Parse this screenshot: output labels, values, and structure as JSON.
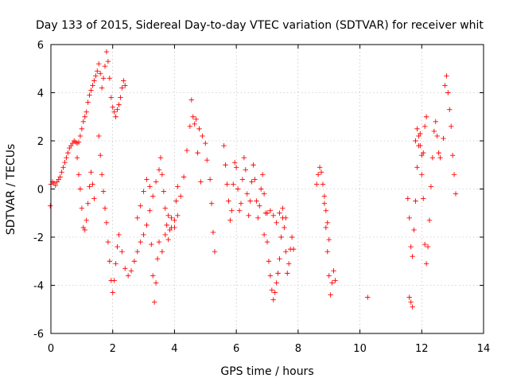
{
  "chart_data": {
    "type": "scatter",
    "title": "Day 133 of 2015, Sidereal Day-to-day VTEC variation (SDTVAR) for receiver whit",
    "xlabel": "GPS time / hours",
    "ylabel": "SDTVAR / TECUs",
    "xlim": [
      0,
      14
    ],
    "ylim": [
      -6,
      6
    ],
    "xticks": [
      0,
      2,
      4,
      6,
      8,
      10,
      12,
      14
    ],
    "yticks": [
      -6,
      -4,
      -2,
      0,
      2,
      4,
      6
    ],
    "xtick_labels": [
      "0",
      "2",
      "4",
      "6",
      "8",
      "10",
      "12",
      "14"
    ],
    "ytick_labels": [
      "-6",
      "-4",
      "-2",
      "0",
      "2",
      "4",
      "6"
    ],
    "grid": true,
    "marker": "+",
    "color": "#ff0000",
    "series": [
      {
        "name": "SDTVAR",
        "points": [
          [
            -0.02,
            -0.7
          ],
          [
            0.0,
            0.2
          ],
          [
            0.05,
            0.3
          ],
          [
            0.1,
            0.25
          ],
          [
            0.15,
            0.15
          ],
          [
            0.2,
            0.3
          ],
          [
            0.25,
            0.4
          ],
          [
            0.3,
            0.5
          ],
          [
            0.35,
            0.7
          ],
          [
            0.4,
            0.9
          ],
          [
            0.45,
            1.1
          ],
          [
            0.5,
            1.3
          ],
          [
            0.55,
            1.5
          ],
          [
            0.6,
            1.7
          ],
          [
            0.65,
            1.8
          ],
          [
            0.7,
            1.9
          ],
          [
            0.75,
            2.0
          ],
          [
            0.8,
            1.95
          ],
          [
            0.85,
            1.9
          ],
          [
            0.9,
            1.95
          ],
          [
            0.95,
            2.2
          ],
          [
            1.0,
            2.5
          ],
          [
            1.05,
            2.8
          ],
          [
            1.1,
            3.0
          ],
          [
            1.15,
            3.2
          ],
          [
            1.2,
            3.6
          ],
          [
            1.25,
            3.9
          ],
          [
            1.3,
            4.1
          ],
          [
            1.35,
            4.3
          ],
          [
            1.4,
            4.5
          ],
          [
            1.45,
            4.7
          ],
          [
            1.5,
            4.9
          ],
          [
            1.55,
            5.2
          ],
          [
            1.6,
            4.8
          ],
          [
            1.65,
            4.2
          ],
          [
            1.7,
            4.6
          ],
          [
            1.75,
            5.1
          ],
          [
            1.8,
            5.7
          ],
          [
            1.85,
            5.3
          ],
          [
            1.9,
            4.6
          ],
          [
            1.95,
            3.8
          ],
          [
            2.0,
            3.4
          ],
          [
            2.05,
            3.2
          ],
          [
            2.1,
            3.0
          ],
          [
            2.15,
            3.3
          ],
          [
            2.2,
            3.5
          ],
          [
            2.25,
            3.8
          ],
          [
            2.3,
            4.2
          ],
          [
            2.35,
            4.5
          ],
          [
            2.4,
            4.3
          ],
          [
            0.85,
            1.3
          ],
          [
            0.9,
            0.6
          ],
          [
            0.95,
            0.0
          ],
          [
            1.0,
            -0.8
          ],
          [
            1.05,
            -1.6
          ],
          [
            1.1,
            -1.7
          ],
          [
            1.15,
            -1.3
          ],
          [
            1.2,
            -0.6
          ],
          [
            1.25,
            0.1
          ],
          [
            1.3,
            0.7
          ],
          [
            1.35,
            0.2
          ],
          [
            1.4,
            -0.4
          ],
          [
            1.55,
            2.2
          ],
          [
            1.6,
            1.4
          ],
          [
            1.65,
            0.6
          ],
          [
            1.7,
            -0.1
          ],
          [
            1.75,
            -0.8
          ],
          [
            1.8,
            -1.4
          ],
          [
            1.85,
            -2.2
          ],
          [
            1.9,
            -3.0
          ],
          [
            1.95,
            -3.8
          ],
          [
            2.0,
            -4.3
          ],
          [
            2.05,
            -3.8
          ],
          [
            2.1,
            -3.1
          ],
          [
            2.15,
            -2.4
          ],
          [
            2.2,
            -1.9
          ],
          [
            2.3,
            -2.6
          ],
          [
            2.4,
            -3.3
          ],
          [
            2.5,
            -3.6
          ],
          [
            2.6,
            -3.4
          ],
          [
            2.7,
            -3.0
          ],
          [
            2.8,
            -2.6
          ],
          [
            2.9,
            -2.2
          ],
          [
            3.0,
            -1.9
          ],
          [
            3.1,
            -1.5
          ],
          [
            3.2,
            -0.9
          ],
          [
            3.3,
            -0.3
          ],
          [
            3.4,
            0.3
          ],
          [
            3.5,
            0.8
          ],
          [
            3.55,
            1.3
          ],
          [
            3.6,
            0.6
          ],
          [
            3.65,
            -0.1
          ],
          [
            3.7,
            -0.8
          ],
          [
            3.75,
            -1.5
          ],
          [
            3.8,
            -2.1
          ],
          [
            3.85,
            -1.7
          ],
          [
            3.9,
            -1.2
          ],
          [
            4.0,
            -1.6
          ],
          [
            4.1,
            -1.1
          ],
          [
            4.2,
            -0.3
          ],
          [
            4.3,
            0.5
          ],
          [
            4.4,
            1.6
          ],
          [
            4.5,
            2.6
          ],
          [
            4.6,
            3.0
          ],
          [
            4.7,
            2.9
          ],
          [
            4.8,
            2.5
          ],
          [
            4.9,
            2.2
          ],
          [
            5.0,
            1.9
          ],
          [
            2.8,
            -1.2
          ],
          [
            2.9,
            -0.7
          ],
          [
            3.0,
            -0.1
          ],
          [
            3.1,
            0.4
          ],
          [
            3.2,
            0.1
          ],
          [
            3.25,
            -2.3
          ],
          [
            3.3,
            -3.6
          ],
          [
            3.35,
            -4.7
          ],
          [
            3.4,
            -3.9
          ],
          [
            3.45,
            -2.9
          ],
          [
            3.5,
            -2.2
          ],
          [
            3.6,
            -2.6
          ],
          [
            3.7,
            -1.9
          ],
          [
            3.8,
            -1.1
          ],
          [
            3.9,
            -1.6
          ],
          [
            4.0,
            -1.3
          ],
          [
            4.05,
            -0.5
          ],
          [
            4.1,
            0.1
          ],
          [
            4.55,
            3.7
          ],
          [
            4.65,
            2.7
          ],
          [
            4.75,
            1.5
          ],
          [
            4.85,
            0.3
          ],
          [
            5.05,
            1.2
          ],
          [
            5.15,
            0.4
          ],
          [
            5.2,
            -0.6
          ],
          [
            5.25,
            -1.8
          ],
          [
            5.3,
            -2.6
          ],
          [
            5.6,
            1.8
          ],
          [
            5.65,
            1.0
          ],
          [
            5.7,
            0.2
          ],
          [
            5.75,
            -0.5
          ],
          [
            5.8,
            -1.3
          ],
          [
            5.85,
            -0.9
          ],
          [
            5.9,
            0.2
          ],
          [
            5.95,
            1.1
          ],
          [
            6.0,
            0.9
          ],
          [
            6.05,
            0.0
          ],
          [
            6.1,
            -0.9
          ],
          [
            6.15,
            -0.6
          ],
          [
            6.2,
            0.4
          ],
          [
            6.25,
            1.3
          ],
          [
            6.3,
            0.8
          ],
          [
            6.35,
            -0.2
          ],
          [
            6.4,
            -1.1
          ],
          [
            6.45,
            -0.5
          ],
          [
            6.5,
            0.3
          ],
          [
            6.55,
            1.0
          ],
          [
            6.6,
            0.4
          ],
          [
            6.65,
            -0.5
          ],
          [
            6.7,
            -1.2
          ],
          [
            6.75,
            -0.7
          ],
          [
            6.8,
            0.0
          ],
          [
            6.85,
            0.6
          ],
          [
            6.9,
            -0.2
          ],
          [
            6.95,
            -1.0
          ],
          [
            7.0,
            -2.2
          ],
          [
            7.05,
            -3.0
          ],
          [
            7.1,
            -3.6
          ],
          [
            7.15,
            -4.2
          ],
          [
            7.2,
            -4.6
          ],
          [
            7.25,
            -4.3
          ],
          [
            7.3,
            -3.9
          ],
          [
            7.35,
            -3.5
          ],
          [
            7.4,
            -2.9
          ],
          [
            7.45,
            -2.0
          ],
          [
            7.5,
            -1.2
          ],
          [
            7.55,
            -1.6
          ],
          [
            7.6,
            -2.6
          ],
          [
            7.65,
            -3.5
          ],
          [
            7.7,
            -3.1
          ],
          [
            7.75,
            -2.5
          ],
          [
            7.8,
            -2.0
          ],
          [
            7.85,
            -2.5
          ],
          [
            6.9,
            -1.9
          ],
          [
            7.0,
            -1.0
          ],
          [
            7.1,
            -0.9
          ],
          [
            7.2,
            -1.1
          ],
          [
            7.3,
            -1.4
          ],
          [
            7.4,
            -1.0
          ],
          [
            7.5,
            -0.8
          ],
          [
            7.6,
            -1.2
          ],
          [
            8.6,
            0.2
          ],
          [
            8.65,
            0.6
          ],
          [
            8.7,
            0.9
          ],
          [
            8.75,
            0.7
          ],
          [
            8.8,
            0.2
          ],
          [
            8.85,
            -0.6
          ],
          [
            8.9,
            -1.6
          ],
          [
            8.95,
            -2.6
          ],
          [
            9.0,
            -3.6
          ],
          [
            9.05,
            -4.4
          ],
          [
            9.1,
            -3.9
          ],
          [
            9.15,
            -3.4
          ],
          [
            9.2,
            -3.8
          ],
          [
            8.85,
            -0.3
          ],
          [
            8.9,
            -0.9
          ],
          [
            8.95,
            -1.4
          ],
          [
            9.0,
            -2.1
          ],
          [
            10.25,
            -4.5
          ],
          [
            11.6,
            -4.5
          ],
          [
            11.65,
            -4.7
          ],
          [
            11.7,
            -4.9
          ],
          [
            11.55,
            -0.4
          ],
          [
            11.6,
            -1.2
          ],
          [
            11.65,
            -2.4
          ],
          [
            11.7,
            -2.8
          ],
          [
            11.75,
            -1.7
          ],
          [
            11.8,
            -0.5
          ],
          [
            11.85,
            0.9
          ],
          [
            11.9,
            1.8
          ],
          [
            11.95,
            2.3
          ],
          [
            12.0,
            1.4
          ],
          [
            12.05,
            -0.4
          ],
          [
            12.1,
            -2.3
          ],
          [
            12.15,
            -3.1
          ],
          [
            12.2,
            -2.4
          ],
          [
            12.25,
            -1.3
          ],
          [
            12.3,
            0.1
          ],
          [
            12.35,
            1.3
          ],
          [
            12.4,
            2.4
          ],
          [
            12.45,
            2.8
          ],
          [
            12.5,
            2.2
          ],
          [
            12.55,
            1.5
          ],
          [
            12.6,
            1.3
          ],
          [
            12.7,
            2.1
          ],
          [
            11.8,
            2.0
          ],
          [
            11.85,
            2.5
          ],
          [
            11.9,
            2.2
          ],
          [
            11.95,
            1.8
          ],
          [
            12.0,
            0.6
          ],
          [
            12.05,
            1.5
          ],
          [
            12.1,
            2.6
          ],
          [
            12.15,
            3.0
          ],
          [
            12.75,
            4.3
          ],
          [
            12.8,
            4.7
          ],
          [
            12.85,
            4.0
          ],
          [
            12.9,
            3.3
          ],
          [
            12.95,
            2.6
          ],
          [
            13.0,
            1.4
          ],
          [
            13.05,
            0.6
          ],
          [
            13.1,
            -0.2
          ]
        ]
      }
    ]
  }
}
